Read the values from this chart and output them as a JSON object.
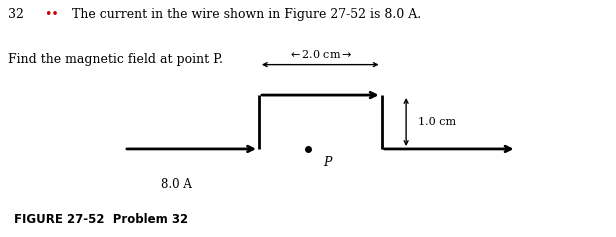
{
  "bg_color": "#ffffff",
  "wire_color": "#000000",
  "wire_lw": 2.0,
  "dim_2cm_label": "← 2.0 cm →",
  "dim_1cm_label": "1.0 cm",
  "current_label": "8.0 A",
  "point_P_label": "P",
  "bullet_color": "#cc0000",
  "figure_label": "FIGURE 27-52  Problem 32",
  "problem_number": "32",
  "bullets": "••",
  "problem_text": "The current in the wire shown in Figure 27-52 is 8.0 A.",
  "problem_text2": "Find the magnetic field at point P."
}
